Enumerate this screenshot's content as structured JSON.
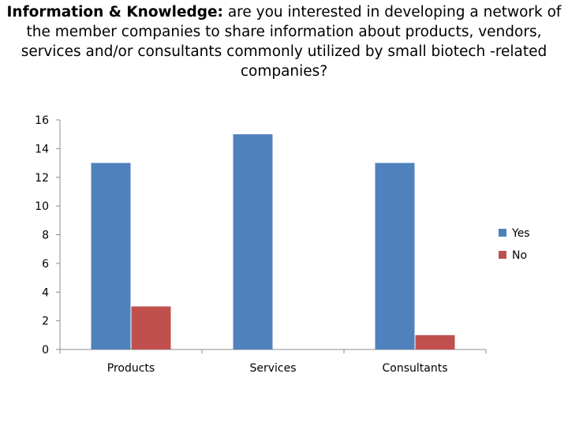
{
  "slide": {
    "title_bold": "Information & Knowledge:",
    "title_rest": " are you interested in developing a network of the member companies to share information about products, vendors, services and/or consultants commonly utilized by small biotech -related companies?"
  },
  "chart_data": {
    "type": "bar",
    "categories": [
      "Products",
      "Services",
      "Consultants"
    ],
    "series": [
      {
        "name": "Yes",
        "values": [
          13,
          15,
          13
        ],
        "color": "#4f81bd"
      },
      {
        "name": "No",
        "values": [
          3,
          0,
          1
        ],
        "color": "#c0504d"
      }
    ],
    "ylim": [
      0,
      16
    ],
    "yticks": [
      0,
      2,
      4,
      6,
      8,
      10,
      12,
      14,
      16
    ],
    "grid": false,
    "legend": "right"
  }
}
